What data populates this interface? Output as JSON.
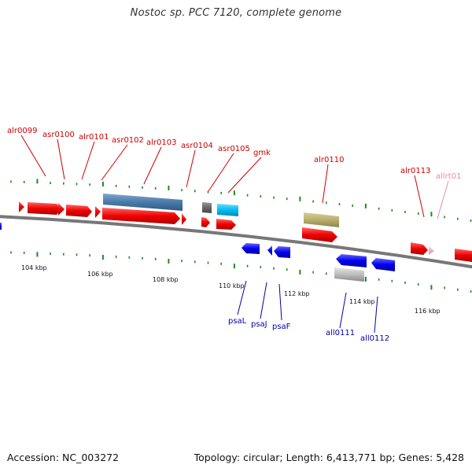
{
  "title": "Nostoc sp. PCC 7120, complete genome",
  "footer": {
    "accession": "Accession: NC_003272",
    "topology": "Topology: circular; Length: 6,413,771 bp; Genes: 5,428"
  },
  "colors": {
    "forward_gene": "#ee0000",
    "reverse_gene": "#0000ee",
    "forward_label": "#cc0000",
    "reverse_label": "#0000aa",
    "trna_label": "#ee88aa",
    "tick": "#228822",
    "backbone": "#777777"
  },
  "kbp_labels": [
    "104 kbp",
    "106 kbp",
    "108 kbp",
    "110 kbp",
    "112 kbp",
    "114 kbp",
    "116 kbp"
  ],
  "forward_genes": [
    "alr0099",
    "asr0100",
    "alr0101",
    "asr0102",
    "alr0103",
    "asr0104",
    "asr0105",
    "gmk",
    "alr0110",
    "alr0113"
  ],
  "trna_genes": [
    "allrt01"
  ],
  "reverse_genes": [
    "psaL",
    "psaJ",
    "psaF",
    "all0111",
    "all0112"
  ]
}
